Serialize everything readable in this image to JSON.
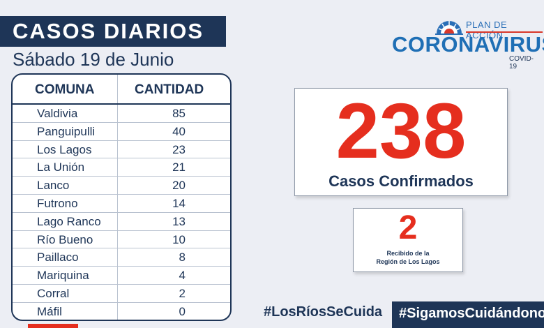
{
  "header": {
    "title": "CASOS DIARIOS",
    "date": "Sábado 19 de Junio"
  },
  "logo": {
    "plan_text": "PLAN DE ACCIÓN",
    "word": "CORONAVIRUS",
    "sub": "COVID-19"
  },
  "table": {
    "headers": [
      "COMUNA",
      "CANTIDAD"
    ],
    "rows": [
      {
        "comuna": "Valdivia",
        "cantidad": "85"
      },
      {
        "comuna": "Panguipulli",
        "cantidad": "40"
      },
      {
        "comuna": "Los Lagos",
        "cantidad": "23"
      },
      {
        "comuna": "La Unión",
        "cantidad": "21"
      },
      {
        "comuna": "Lanco",
        "cantidad": "20"
      },
      {
        "comuna": "Futrono",
        "cantidad": "14"
      },
      {
        "comuna": "Lago Ranco",
        "cantidad": "13"
      },
      {
        "comuna": "Río Bueno",
        "cantidad": "10"
      },
      {
        "comuna": "Paillaco",
        "cantidad": "8"
      },
      {
        "comuna": "Mariquina",
        "cantidad": "4"
      },
      {
        "comuna": "Corral",
        "cantidad": "2"
      },
      {
        "comuna": "Máfil",
        "cantidad": "0"
      }
    ]
  },
  "summary": {
    "total": "238",
    "total_label": "Casos Confirmados",
    "received": "2",
    "received_label_line1": "Recibido de la",
    "received_label_line2": "Región de Los Lagos"
  },
  "hashtags": {
    "first": "#LosRíosSeCuida",
    "second": "#SigamosCuidándonos"
  },
  "colors": {
    "navy": "#1e3557",
    "red": "#e52e1e",
    "logo_blue": "#1f6fb5"
  }
}
